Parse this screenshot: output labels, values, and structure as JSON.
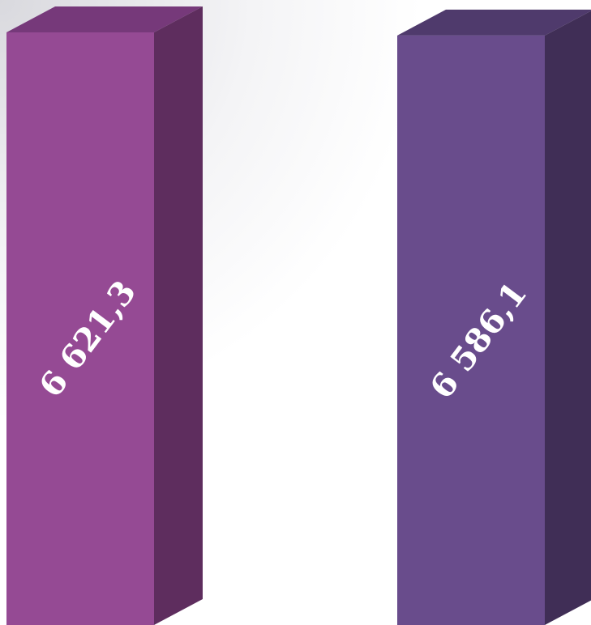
{
  "chart_data": {
    "type": "bar",
    "variant": "3d-column",
    "categories": [
      "",
      ""
    ],
    "values": [
      6621.3,
      6586.1
    ],
    "data_labels": [
      "6 621,3",
      "6 586,1"
    ],
    "colors": {
      "bar_1_front": "#954A94",
      "bar_1_side": "#5E2D5E",
      "bar_1_top": "#76397A",
      "bar_2_front": "#694C8C",
      "bar_2_side": "#402E56",
      "bar_2_top": "#4F3A6C"
    },
    "title": "",
    "xlabel": "",
    "ylabel": "",
    "grid": false,
    "legend": "none"
  }
}
